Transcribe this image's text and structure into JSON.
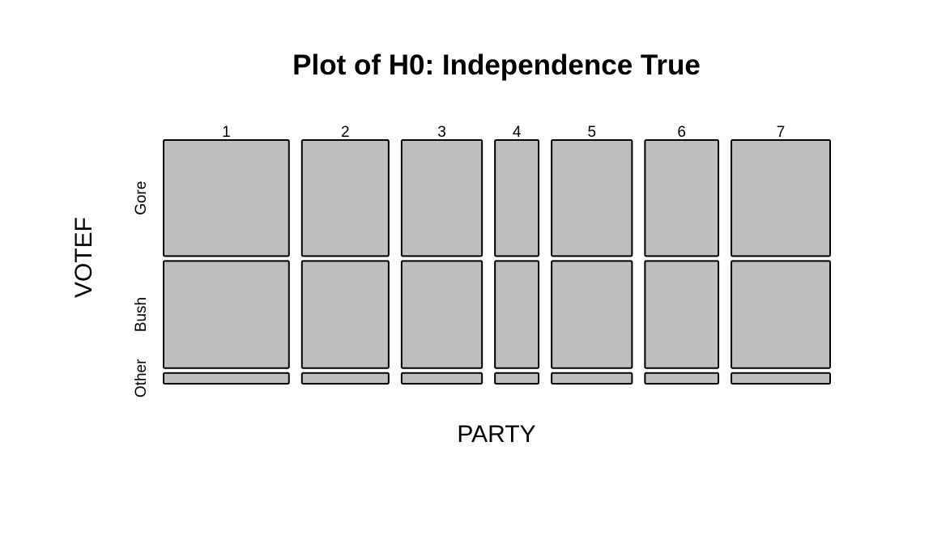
{
  "chart_data": {
    "type": "mosaic",
    "title": "Plot of H0: Independence True",
    "xlabel": "PARTY",
    "ylabel": "VOTEF",
    "x_categories": [
      "1",
      "2",
      "3",
      "4",
      "5",
      "6",
      "7"
    ],
    "y_categories": [
      "Gore",
      "Bush",
      "Other"
    ],
    "x_proportions": [
      0.198,
      0.137,
      0.127,
      0.069,
      0.127,
      0.116,
      0.156
    ],
    "y_proportions": [
      0.496,
      0.458,
      0.046
    ],
    "fill_color": "#bebebe",
    "stroke_color": "#000000",
    "grid": false,
    "legend": "none"
  }
}
